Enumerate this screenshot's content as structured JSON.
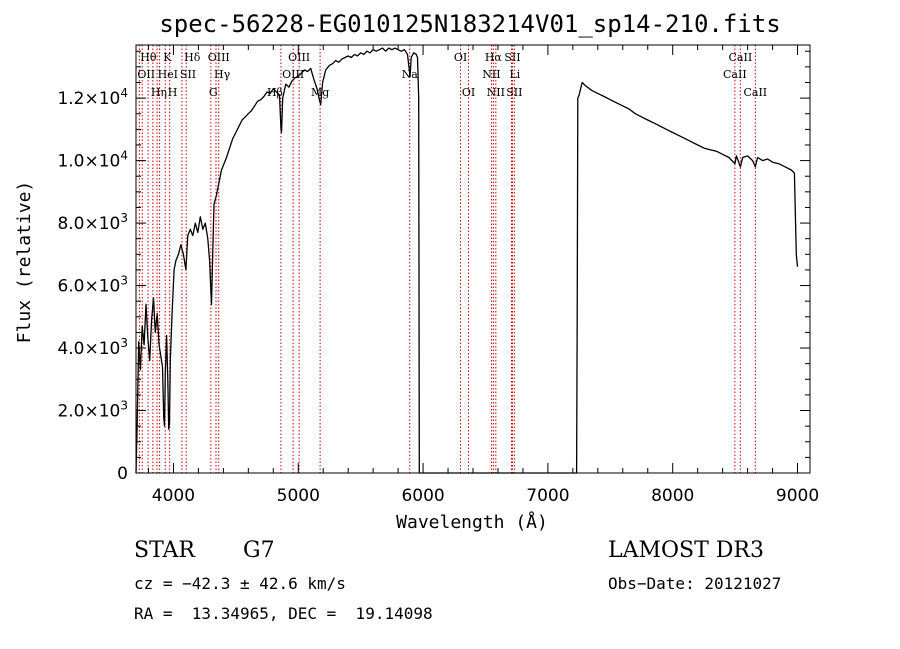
{
  "chart_data": {
    "type": "line",
    "title": "spec-56228-EG010125N183214V01_sp14-210.fits",
    "xlabel": "Wavelength (Å)",
    "ylabel": "Flux (relative)",
    "xlim": [
      3700,
      9100
    ],
    "ylim": [
      0,
      13700
    ],
    "x_ticks": [
      {
        "value": 4000,
        "label": "4000"
      },
      {
        "value": 5000,
        "label": "5000"
      },
      {
        "value": 6000,
        "label": "6000"
      },
      {
        "value": 7000,
        "label": "7000"
      },
      {
        "value": 8000,
        "label": "8000"
      },
      {
        "value": 9000,
        "label": "9000"
      }
    ],
    "y_ticks": [
      {
        "value": 0,
        "mant": "0",
        "exp": ""
      },
      {
        "value": 2000,
        "mant": "2.0×10",
        "exp": "3"
      },
      {
        "value": 4000,
        "mant": "4.0×10",
        "exp": "3"
      },
      {
        "value": 6000,
        "mant": "6.0×10",
        "exp": "3"
      },
      {
        "value": 8000,
        "mant": "8.0×10",
        "exp": "3"
      },
      {
        "value": 10000,
        "mant": "1.0×10",
        "exp": "4"
      },
      {
        "value": 12000,
        "mant": "1.2×10",
        "exp": "4"
      }
    ],
    "line_color": "#000000",
    "marker_color": "#cc0000",
    "series": [
      {
        "name": "flux",
        "points": [
          [
            3700,
            0
          ],
          [
            3710,
            1600
          ],
          [
            3722,
            4200
          ],
          [
            3735,
            3300
          ],
          [
            3750,
            4700
          ],
          [
            3765,
            4100
          ],
          [
            3780,
            5400
          ],
          [
            3795,
            4300
          ],
          [
            3810,
            3600
          ],
          [
            3825,
            4900
          ],
          [
            3840,
            5600
          ],
          [
            3855,
            4500
          ],
          [
            3870,
            5100
          ],
          [
            3885,
            4100
          ],
          [
            3900,
            3700
          ],
          [
            3912,
            3400
          ],
          [
            3922,
            1800
          ],
          [
            3928,
            1500
          ],
          [
            3935,
            3200
          ],
          [
            3945,
            4400
          ],
          [
            3955,
            3000
          ],
          [
            3962,
            1400
          ],
          [
            3968,
            1600
          ],
          [
            3975,
            3600
          ],
          [
            3990,
            5200
          ],
          [
            4005,
            6500
          ],
          [
            4020,
            6800
          ],
          [
            4040,
            7000
          ],
          [
            4060,
            7300
          ],
          [
            4080,
            7000
          ],
          [
            4100,
            6500
          ],
          [
            4115,
            7600
          ],
          [
            4135,
            7800
          ],
          [
            4155,
            7600
          ],
          [
            4175,
            8000
          ],
          [
            4195,
            7700
          ],
          [
            4215,
            8200
          ],
          [
            4235,
            7800
          ],
          [
            4255,
            8000
          ],
          [
            4275,
            7500
          ],
          [
            4290,
            6800
          ],
          [
            4300,
            5800
          ],
          [
            4305,
            5400
          ],
          [
            4312,
            6600
          ],
          [
            4325,
            8600
          ],
          [
            4345,
            8900
          ],
          [
            4365,
            9300
          ],
          [
            4385,
            9700
          ],
          [
            4405,
            9900
          ],
          [
            4425,
            10100
          ],
          [
            4450,
            10400
          ],
          [
            4475,
            10700
          ],
          [
            4500,
            10900
          ],
          [
            4525,
            11100
          ],
          [
            4550,
            11300
          ],
          [
            4575,
            11400
          ],
          [
            4600,
            11500
          ],
          [
            4625,
            11600
          ],
          [
            4650,
            11750
          ],
          [
            4675,
            11900
          ],
          [
            4700,
            11950
          ],
          [
            4725,
            12050
          ],
          [
            4750,
            12200
          ],
          [
            4775,
            12150
          ],
          [
            4800,
            12300
          ],
          [
            4825,
            12200
          ],
          [
            4850,
            12100
          ],
          [
            4862,
            11000
          ],
          [
            4866,
            10900
          ],
          [
            4875,
            12000
          ],
          [
            4900,
            12450
          ],
          [
            4925,
            12350
          ],
          [
            4950,
            12550
          ],
          [
            4975,
            12650
          ],
          [
            5000,
            12700
          ],
          [
            5025,
            12800
          ],
          [
            5050,
            12900
          ],
          [
            5075,
            12850
          ],
          [
            5100,
            12950
          ],
          [
            5125,
            12600
          ],
          [
            5150,
            12300
          ],
          [
            5172,
            11900
          ],
          [
            5180,
            11800
          ],
          [
            5195,
            12500
          ],
          [
            5220,
            12900
          ],
          [
            5250,
            13050
          ],
          [
            5275,
            13100
          ],
          [
            5300,
            13200
          ],
          [
            5325,
            13150
          ],
          [
            5350,
            13250
          ],
          [
            5375,
            13300
          ],
          [
            5400,
            13350
          ],
          [
            5425,
            13300
          ],
          [
            5450,
            13400
          ],
          [
            5475,
            13350
          ],
          [
            5500,
            13450
          ],
          [
            5525,
            13400
          ],
          [
            5550,
            13500
          ],
          [
            5575,
            13450
          ],
          [
            5600,
            13550
          ],
          [
            5625,
            13500
          ],
          [
            5650,
            13550
          ],
          [
            5675,
            13600
          ],
          [
            5700,
            13500
          ],
          [
            5725,
            13600
          ],
          [
            5750,
            13550
          ],
          [
            5775,
            13600
          ],
          [
            5800,
            13550
          ],
          [
            5825,
            13500
          ],
          [
            5850,
            13550
          ],
          [
            5875,
            13400
          ],
          [
            5890,
            12900
          ],
          [
            5896,
            12700
          ],
          [
            5905,
            13300
          ],
          [
            5925,
            13450
          ],
          [
            5945,
            13400
          ],
          [
            5955,
            13300
          ],
          [
            5965,
            12000
          ],
          [
            5970,
            0
          ],
          [
            7230,
            0
          ],
          [
            7235,
            5000
          ],
          [
            7240,
            12000
          ],
          [
            7250,
            12100
          ],
          [
            7262,
            12300
          ],
          [
            7275,
            12500
          ],
          [
            7300,
            12400
          ],
          [
            7350,
            12250
          ],
          [
            7400,
            12150
          ],
          [
            7450,
            12050
          ],
          [
            7500,
            11950
          ],
          [
            7550,
            11850
          ],
          [
            7600,
            11750
          ],
          [
            7650,
            11650
          ],
          [
            7700,
            11500
          ],
          [
            7750,
            11400
          ],
          [
            7800,
            11300
          ],
          [
            7850,
            11200
          ],
          [
            7900,
            11100
          ],
          [
            7950,
            11000
          ],
          [
            8000,
            10900
          ],
          [
            8050,
            10800
          ],
          [
            8100,
            10700
          ],
          [
            8150,
            10600
          ],
          [
            8200,
            10500
          ],
          [
            8250,
            10400
          ],
          [
            8300,
            10350
          ],
          [
            8350,
            10300
          ],
          [
            8400,
            10200
          ],
          [
            8450,
            10100
          ],
          [
            8498,
            9900
          ],
          [
            8510,
            10150
          ],
          [
            8542,
            9800
          ],
          [
            8560,
            10100
          ],
          [
            8600,
            10150
          ],
          [
            8640,
            10000
          ],
          [
            8662,
            9800
          ],
          [
            8680,
            10100
          ],
          [
            8720,
            10000
          ],
          [
            8760,
            10050
          ],
          [
            8800,
            9950
          ],
          [
            8850,
            9900
          ],
          [
            8900,
            9800
          ],
          [
            8950,
            9700
          ],
          [
            8975,
            9600
          ],
          [
            8990,
            7000
          ],
          [
            9000,
            6600
          ]
        ]
      }
    ],
    "line_markers": [
      {
        "wl": 3727,
        "label": "OII",
        "row": 1,
        "anchor": "start"
      },
      {
        "wl": 3750,
        "label": "Hθ",
        "row": 0,
        "anchor": "start"
      },
      {
        "wl": 3797,
        "label": "",
        "row": 0,
        "anchor": "start"
      },
      {
        "wl": 3835,
        "label": "Hη",
        "row": 2,
        "anchor": "start"
      },
      {
        "wl": 3869,
        "label": "",
        "row": 0,
        "anchor": "start"
      },
      {
        "wl": 3889,
        "label": "HeI",
        "row": 1,
        "anchor": "start"
      },
      {
        "wl": 3934,
        "label": "K",
        "row": 0,
        "anchor": "start"
      },
      {
        "wl": 3970,
        "label": "H",
        "row": 2,
        "anchor": "start"
      },
      {
        "wl": 4068,
        "label": "SII",
        "row": 1,
        "anchor": "start"
      },
      {
        "wl": 4102,
        "label": "Hδ",
        "row": 0,
        "anchor": "start"
      },
      {
        "wl": 4300,
        "label": "G",
        "row": 2,
        "anchor": "start"
      },
      {
        "wl": 4341,
        "label": "Hγ",
        "row": 1,
        "anchor": "start"
      },
      {
        "wl": 4363,
        "label": "OIII",
        "row": 0,
        "anchor": "middle"
      },
      {
        "wl": 4861,
        "label": "Hβ",
        "row": 2,
        "anchor": "end"
      },
      {
        "wl": 4959,
        "label": "OIII",
        "row": 1,
        "anchor": "middle"
      },
      {
        "wl": 5007,
        "label": "OIII",
        "row": 0,
        "anchor": "middle"
      },
      {
        "wl": 5175,
        "label": "Mg",
        "row": 2,
        "anchor": "middle"
      },
      {
        "wl": 5893,
        "label": "Na",
        "row": 1,
        "anchor": "middle"
      },
      {
        "wl": 6300,
        "label": "OI",
        "row": 0,
        "anchor": "middle"
      },
      {
        "wl": 6364,
        "label": "OI",
        "row": 2,
        "anchor": "middle"
      },
      {
        "wl": 6548,
        "label": "NII",
        "row": 1,
        "anchor": "middle"
      },
      {
        "wl": 6563,
        "label": "Hα",
        "row": 0,
        "anchor": "middle"
      },
      {
        "wl": 6583,
        "label": "NII",
        "row": 2,
        "anchor": "middle"
      },
      {
        "wl": 6708,
        "label": "Li",
        "row": 1,
        "anchor": "start"
      },
      {
        "wl": 6716,
        "label": "SII",
        "row": 0,
        "anchor": "middle"
      },
      {
        "wl": 6731,
        "label": "SII",
        "row": 2,
        "anchor": "middle"
      },
      {
        "wl": 8498,
        "label": "CaII",
        "row": 1,
        "anchor": "middle"
      },
      {
        "wl": 8542,
        "label": "CaII",
        "row": 0,
        "anchor": "middle"
      },
      {
        "wl": 8662,
        "label": "CaII",
        "row": 2,
        "anchor": "middle"
      }
    ]
  },
  "info": {
    "object_class": "STAR",
    "subclass": "G7",
    "survey": "LAMOST DR3",
    "redshift": "cz = −42.3 ± 42.6 km/s",
    "obs_date": "Obs−Date: 20121027",
    "coords": "RA =  13.34965, DEC =  19.14098"
  }
}
